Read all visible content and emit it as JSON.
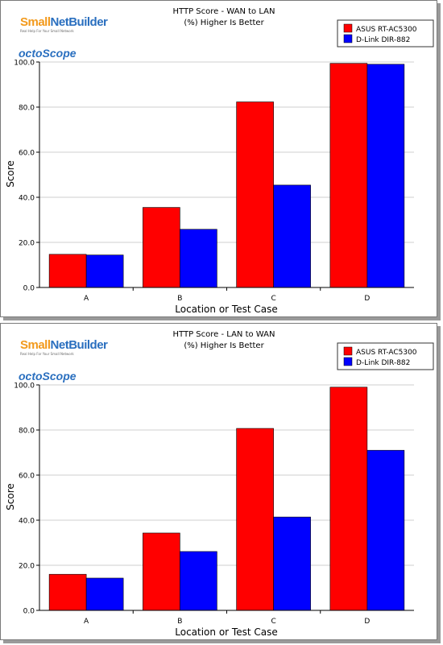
{
  "charts": [
    {
      "logo": {
        "brand_a": "Small",
        "brand_b": "NetBuilder",
        "tagline": "Real Help For Your Small Network",
        "partner": "octoScope"
      },
      "title": "HTTP Score - WAN to LAN",
      "subtitle": "(%) Higher Is Better",
      "legend": [
        "ASUS RT-AC5300",
        "D-Link DIR-882"
      ],
      "xlabel": "Location or Test Case",
      "ylabel": "Score"
    },
    {
      "logo": {
        "brand_a": "Small",
        "brand_b": "NetBuilder",
        "tagline": "Real Help For Your Small Network",
        "partner": "octoScope"
      },
      "title": "HTTP Score - LAN to WAN",
      "subtitle": "(%) Higher Is Better",
      "legend": [
        "ASUS RT-AC5300",
        "D-Link DIR-882"
      ],
      "xlabel": "Location or Test Case",
      "ylabel": "Score"
    }
  ],
  "chart_data": [
    {
      "type": "bar",
      "title": "HTTP Score - WAN to LAN",
      "subtitle": "(%) Higher Is Better",
      "xlabel": "Location or Test Case",
      "ylabel": "Score",
      "categories": [
        "A",
        "B",
        "C",
        "D"
      ],
      "series": [
        {
          "name": "ASUS RT-AC5300",
          "color": "#ff0000",
          "values": [
            14.7,
            35.5,
            82.3,
            99.4
          ]
        },
        {
          "name": "D-Link DIR-882",
          "color": "#0000ff",
          "values": [
            14.4,
            25.8,
            45.4,
            99.0
          ]
        }
      ],
      "ylim": [
        0,
        100
      ],
      "yticks": [
        "0.0",
        "20.0",
        "40.0",
        "60.0",
        "80.0",
        "100.0"
      ],
      "grid": true,
      "legend_position": "top-right"
    },
    {
      "type": "bar",
      "title": "HTTP Score - LAN to WAN",
      "subtitle": "(%) Higher Is Better",
      "xlabel": "Location or Test Case",
      "ylabel": "Score",
      "categories": [
        "A",
        "B",
        "C",
        "D"
      ],
      "series": [
        {
          "name": "ASUS RT-AC5300",
          "color": "#ff0000",
          "values": [
            16.0,
            34.3,
            80.7,
            99.0
          ]
        },
        {
          "name": "D-Link DIR-882",
          "color": "#0000ff",
          "values": [
            14.3,
            26.1,
            41.4,
            71.0
          ]
        }
      ],
      "ylim": [
        0,
        100
      ],
      "yticks": [
        "0.0",
        "20.0",
        "40.0",
        "60.0",
        "80.0",
        "100.0"
      ],
      "grid": true,
      "legend_position": "top-right"
    }
  ]
}
